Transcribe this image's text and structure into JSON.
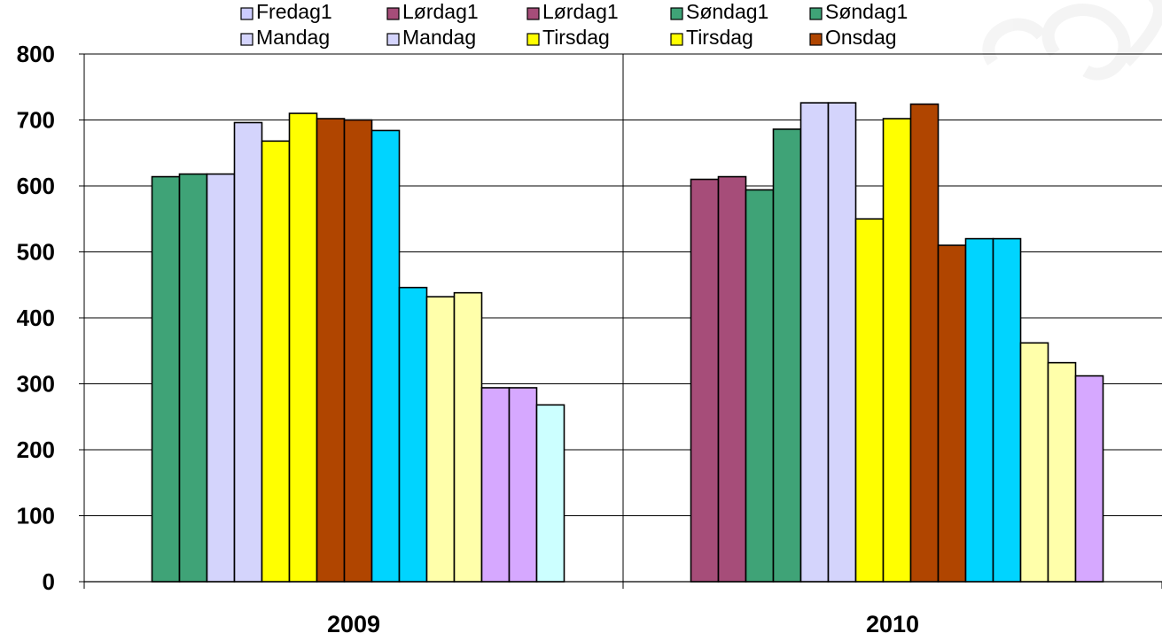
{
  "chart_data": {
    "type": "bar",
    "title": "",
    "xlabel": "",
    "ylabel": "",
    "ylim": [
      0,
      800
    ],
    "yticks": [
      0,
      100,
      200,
      300,
      400,
      500,
      600,
      700,
      800
    ],
    "grid": true,
    "legend_position": "top",
    "categories": [
      "2009",
      "2010"
    ],
    "legend": [
      {
        "label": "Fredag1",
        "color": "#ccccff"
      },
      {
        "label": "Lørdag1",
        "color": "#a64d79"
      },
      {
        "label": "Lørdag1",
        "color": "#a64d79"
      },
      {
        "label": "Søndag1",
        "color": "#3fa377"
      },
      {
        "label": "Søndag1",
        "color": "#3fa377"
      },
      {
        "label": "Mandag",
        "color": "#d4d4fc"
      },
      {
        "label": "Mandag",
        "color": "#d4d4fc"
      },
      {
        "label": "Tirsdag",
        "color": "#ffff00"
      },
      {
        "label": "Tirsdag",
        "color": "#ffff00"
      },
      {
        "label": "Onsdag",
        "color": "#b04500"
      }
    ],
    "groups": [
      {
        "category": "2009",
        "bars": [
          {
            "value": 614,
            "color": "#3fa377"
          },
          {
            "value": 618,
            "color": "#3fa377"
          },
          {
            "value": 618,
            "color": "#d4d4fc"
          },
          {
            "value": 696,
            "color": "#d4d4fc"
          },
          {
            "value": 668,
            "color": "#ffff00"
          },
          {
            "value": 710,
            "color": "#ffff00"
          },
          {
            "value": 702,
            "color": "#b04500"
          },
          {
            "value": 700,
            "color": "#b04500"
          },
          {
            "value": 684,
            "color": "#00d4ff"
          },
          {
            "value": 446,
            "color": "#00d4ff"
          },
          {
            "value": 432,
            "color": "#ffffaa"
          },
          {
            "value": 438,
            "color": "#ffffaa"
          },
          {
            "value": 294,
            "color": "#d6a8ff"
          },
          {
            "value": 294,
            "color": "#d6a8ff"
          },
          {
            "value": 268,
            "color": "#ccffff"
          }
        ]
      },
      {
        "category": "2010",
        "bars": [
          {
            "value": 610,
            "color": "#a64d79"
          },
          {
            "value": 614,
            "color": "#a64d79"
          },
          {
            "value": 594,
            "color": "#3fa377"
          },
          {
            "value": 686,
            "color": "#3fa377"
          },
          {
            "value": 726,
            "color": "#d4d4fc"
          },
          {
            "value": 726,
            "color": "#d4d4fc"
          },
          {
            "value": 550,
            "color": "#ffff00"
          },
          {
            "value": 702,
            "color": "#ffff00"
          },
          {
            "value": 724,
            "color": "#b04500"
          },
          {
            "value": 510,
            "color": "#b04500"
          },
          {
            "value": 520,
            "color": "#00d4ff"
          },
          {
            "value": 520,
            "color": "#00d4ff"
          },
          {
            "value": 362,
            "color": "#ffffaa"
          },
          {
            "value": 332,
            "color": "#ffffaa"
          },
          {
            "value": 312,
            "color": "#d6a8ff"
          }
        ]
      }
    ]
  }
}
